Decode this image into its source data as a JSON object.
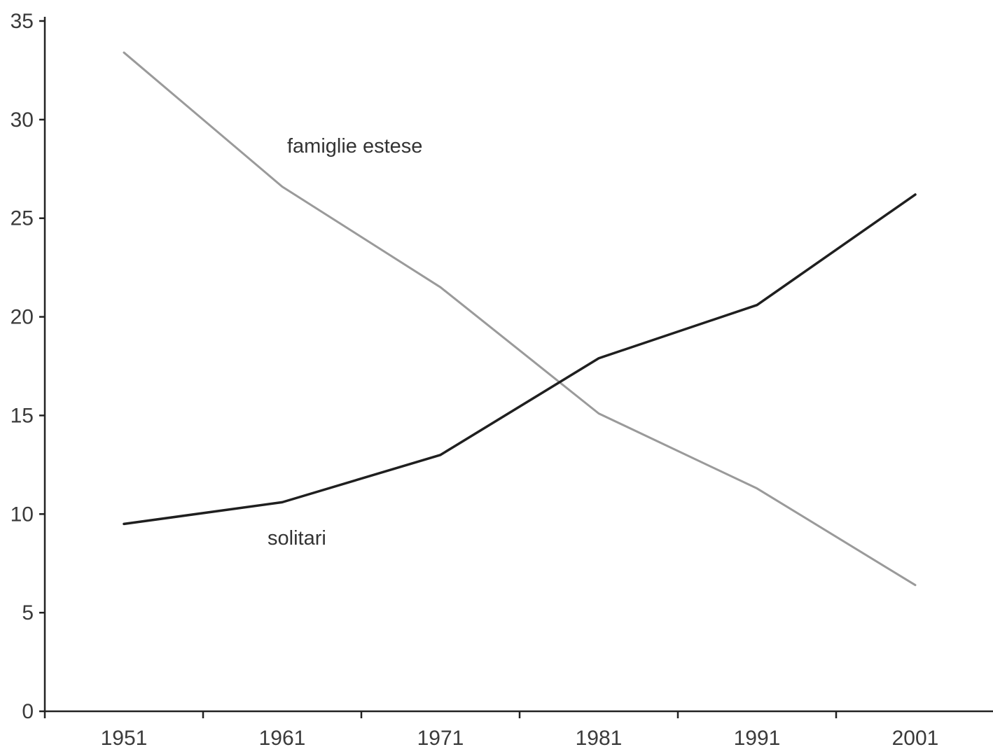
{
  "chart_data": {
    "type": "line",
    "x": [
      "1951",
      "1961",
      "1971",
      "1981",
      "1991",
      "2001"
    ],
    "ylim": [
      0,
      35
    ],
    "yticks": [
      "0",
      "5",
      "10",
      "15",
      "20",
      "25",
      "30",
      "35"
    ],
    "grid": false,
    "series": [
      {
        "name": "famiglie estese",
        "color": "#9a9a9a",
        "values": [
          33.4,
          26.6,
          21.5,
          15.1,
          11.3,
          6.4
        ]
      },
      {
        "name": "solitari",
        "color": "#1f1f1f",
        "values": [
          9.5,
          10.6,
          13.0,
          17.9,
          20.6,
          26.2
        ]
      }
    ],
    "annotations": [
      {
        "text": "famiglie estese",
        "series": "famiglie estese"
      },
      {
        "text": "solitari",
        "series": "solitari"
      }
    ]
  }
}
